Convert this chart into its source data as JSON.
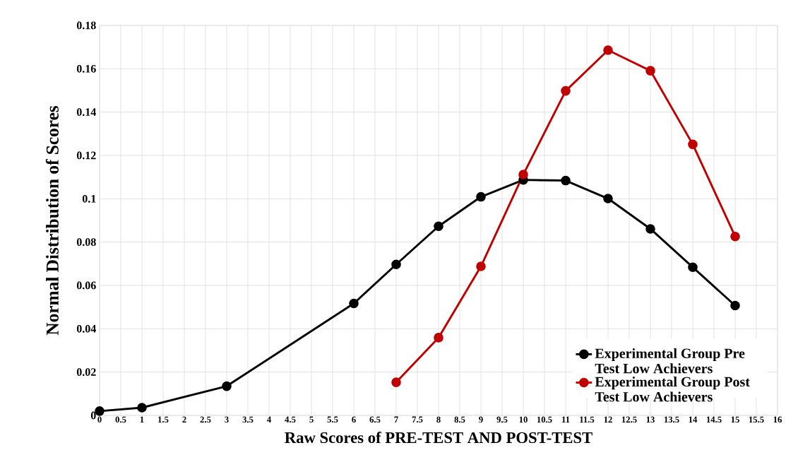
{
  "chart_data": {
    "type": "line",
    "xlabel": "Raw Scores of PRE-TEST AND POST-TEST",
    "ylabel": "Normal Distribution of Scores",
    "xlim": [
      0,
      16
    ],
    "ylim": [
      0,
      0.18
    ],
    "xticks": [
      0,
      0.5,
      1,
      1.5,
      2,
      2.5,
      3,
      3.5,
      4,
      4.5,
      5,
      5.5,
      6,
      6.5,
      7,
      7.5,
      8,
      8.5,
      9,
      9.5,
      10,
      10.5,
      11,
      11.5,
      12,
      12.5,
      13,
      13.5,
      14,
      14.5,
      15,
      15.5,
      16
    ],
    "yticks": [
      0,
      0.02,
      0.04,
      0.06,
      0.08,
      0.1,
      0.12,
      0.14,
      0.16,
      0.18
    ],
    "grid": true,
    "legend": "bottom right",
    "marker": "circle",
    "line_style": "solid",
    "series": [
      {
        "name": "Experimental Group Pre Test Low Achievers",
        "color": "#000000",
        "x": [
          0,
          1,
          3,
          6,
          7,
          8,
          9,
          10,
          11,
          12,
          13,
          14,
          15
        ],
        "values": [
          0.002,
          0.0036,
          0.0135,
          0.0517,
          0.0697,
          0.0873,
          0.1009,
          0.1087,
          0.1084,
          0.1001,
          0.0861,
          0.0684,
          0.0507
        ]
      },
      {
        "name": "Experimental Group Post Test Low Achievers",
        "color": "#c00000",
        "x": [
          7,
          8,
          9,
          10,
          11,
          12,
          13,
          14,
          15
        ],
        "values": [
          0.0153,
          0.0359,
          0.0688,
          0.1112,
          0.1498,
          0.1686,
          0.1591,
          0.1251,
          0.0826
        ]
      }
    ]
  }
}
